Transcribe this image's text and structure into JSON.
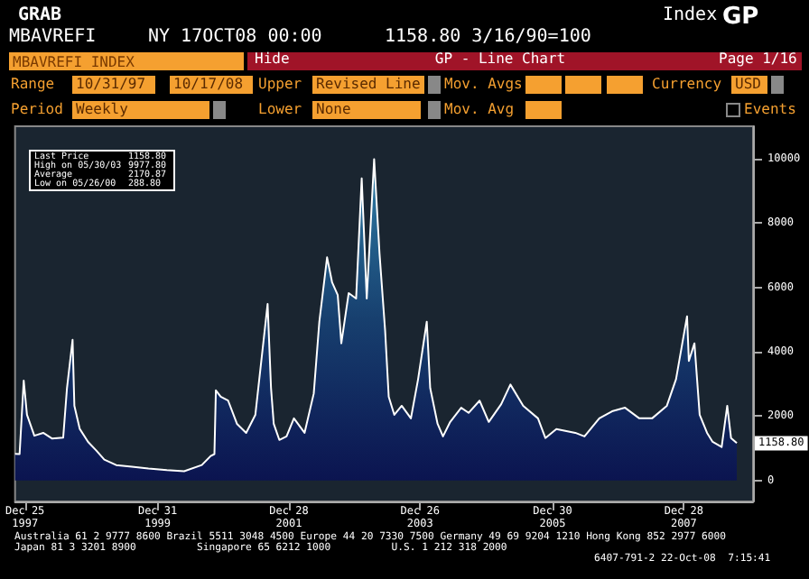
{
  "chart_data": {
    "type": "area",
    "title": "MBAVREFI INDEX",
    "annotations": [
      "GRAB",
      "MBAVREFI",
      "NY 17OCT08 00:00",
      "1158.80 3/16/90=100",
      "Index",
      "GP",
      "Hide",
      "GP - Line Chart",
      "Page 1/16",
      "Range",
      "10/31/97",
      "10/17/08",
      "Upper",
      "Revised Line",
      "Mov. Avgs",
      "Currency",
      "USD",
      "Period",
      "Weekly",
      "Lower",
      "None",
      "Mov. Avg",
      "Events",
      "Last Price",
      "1158.80",
      "High on 05/30/03",
      "9977.80",
      "Average",
      "2170.87",
      "Low on 05/26/00",
      "288.80",
      "Australia 61 2 9777 8600 Brazil 5511 3048 4500 Europe 44 20 7330 7500 Germany 49 69 9204 1210 Hong Kong 852 2977 6000",
      "Japan 81 3 3201 8900          Singapore 65 6212 1000          U.S. 1 212 318 2000",
      "6407-791-2 22-Oct-08  7:15:41",
      {
        "text": "1158.80",
        "x": "2008-10-17",
        "y": 1158.8
      }
    ],
    "x": [
      "1997-10-31",
      "1997-11-25",
      "1997-12-18",
      "1998-01-05",
      "1998-02-15",
      "1998-04-05",
      "1998-05-25",
      "1998-07-25",
      "1998-08-15",
      "1998-09-15",
      "1998-09-25",
      "1998-10-25",
      "1998-12-10",
      "1999-01-25",
      "1999-03-10",
      "1999-05-15",
      "1999-08-10",
      "1999-11-10",
      "2000-02-20",
      "2000-05-26",
      "2000-09-01",
      "2000-10-20",
      "2000-11-10",
      "2000-11-18",
      "2000-12-15",
      "2001-01-25",
      "2001-03-15",
      "2001-05-05",
      "2001-06-25",
      "2001-09-01",
      "2001-09-20",
      "2001-10-05",
      "2001-11-05",
      "2001-12-15",
      "2002-01-25",
      "2002-03-25",
      "2002-05-15",
      "2002-06-15",
      "2002-07-28",
      "2002-08-25",
      "2002-09-25",
      "2002-10-15",
      "2002-11-25",
      "2003-01-05",
      "2003-02-05",
      "2003-03-05",
      "2003-04-15",
      "2003-05-15",
      "2003-06-15",
      "2003-07-05",
      "2003-08-05",
      "2003-09-15",
      "2003-11-05",
      "2003-12-15",
      "2004-02-01",
      "2004-02-20",
      "2004-04-01",
      "2004-05-01",
      "2004-06-10",
      "2004-08-10",
      "2004-09-20",
      "2004-11-20",
      "2005-01-10",
      "2005-03-20",
      "2005-05-10",
      "2005-07-20",
      "2005-10-10",
      "2005-11-20",
      "2006-01-20",
      "2006-05-05",
      "2006-06-25",
      "2006-09-15",
      "2006-11-25",
      "2007-02-05",
      "2007-04-25",
      "2007-07-05",
      "2007-09-25",
      "2007-11-15",
      "2008-01-15",
      "2008-01-25",
      "2008-02-25",
      "2008-03-25",
      "2008-05-05",
      "2008-06-05",
      "2008-07-25",
      "2008-08-25",
      "2008-09-15",
      "2008-10-17"
    ],
    "series": [
      {
        "color": "#ffffff",
        "values": [
          830,
          820,
          3100,
          2040,
          1390,
          1480,
          1300,
          1330,
          2870,
          4370,
          2320,
          1600,
          1200,
          930,
          650,
          480,
          430,
          370,
          320,
          290,
          480,
          760,
          820,
          2800,
          2600,
          2480,
          1760,
          1480,
          2040,
          5480,
          2870,
          1760,
          1260,
          1370,
          1930,
          1480,
          2700,
          4930,
          6930,
          6150,
          5760,
          4260,
          5820,
          5650,
          9380,
          5650,
          9980,
          7040,
          4650,
          2600,
          2040,
          2320,
          1930,
          3150,
          4930,
          2870,
          1760,
          1370,
          1820,
          2260,
          2100,
          2480,
          1820,
          2370,
          2980,
          2320,
          1930,
          1320,
          1600,
          1480,
          1370,
          1930,
          2150,
          2260,
          1930,
          1930,
          2320,
          3150,
          5100,
          3710,
          4260,
          2040,
          1480,
          1200,
          1040,
          2320,
          1320,
          1160
        ]
      }
    ],
    "xlim": [
      "1997-10-31",
      "2009-01-15"
    ],
    "xticks": [
      {
        "value": "1997-12-25",
        "label": "Dec 25\n1997"
      },
      {
        "value": "1999-12-31",
        "label": "Dec 31\n1999"
      },
      {
        "value": "2001-12-28",
        "label": "Dec 28\n2001"
      },
      {
        "value": "2003-12-26",
        "label": "Dec 26\n2003"
      },
      {
        "value": "2005-12-30",
        "label": "Dec 30\n2005"
      },
      {
        "value": "2007-12-28",
        "label": "Dec 28\n2007"
      }
    ],
    "ylim": [
      -650,
      11000
    ],
    "yticks": [
      0,
      2000,
      4000,
      6000,
      8000,
      10000
    ],
    "grid": false,
    "marker": "none",
    "line_style": "solid"
  }
}
